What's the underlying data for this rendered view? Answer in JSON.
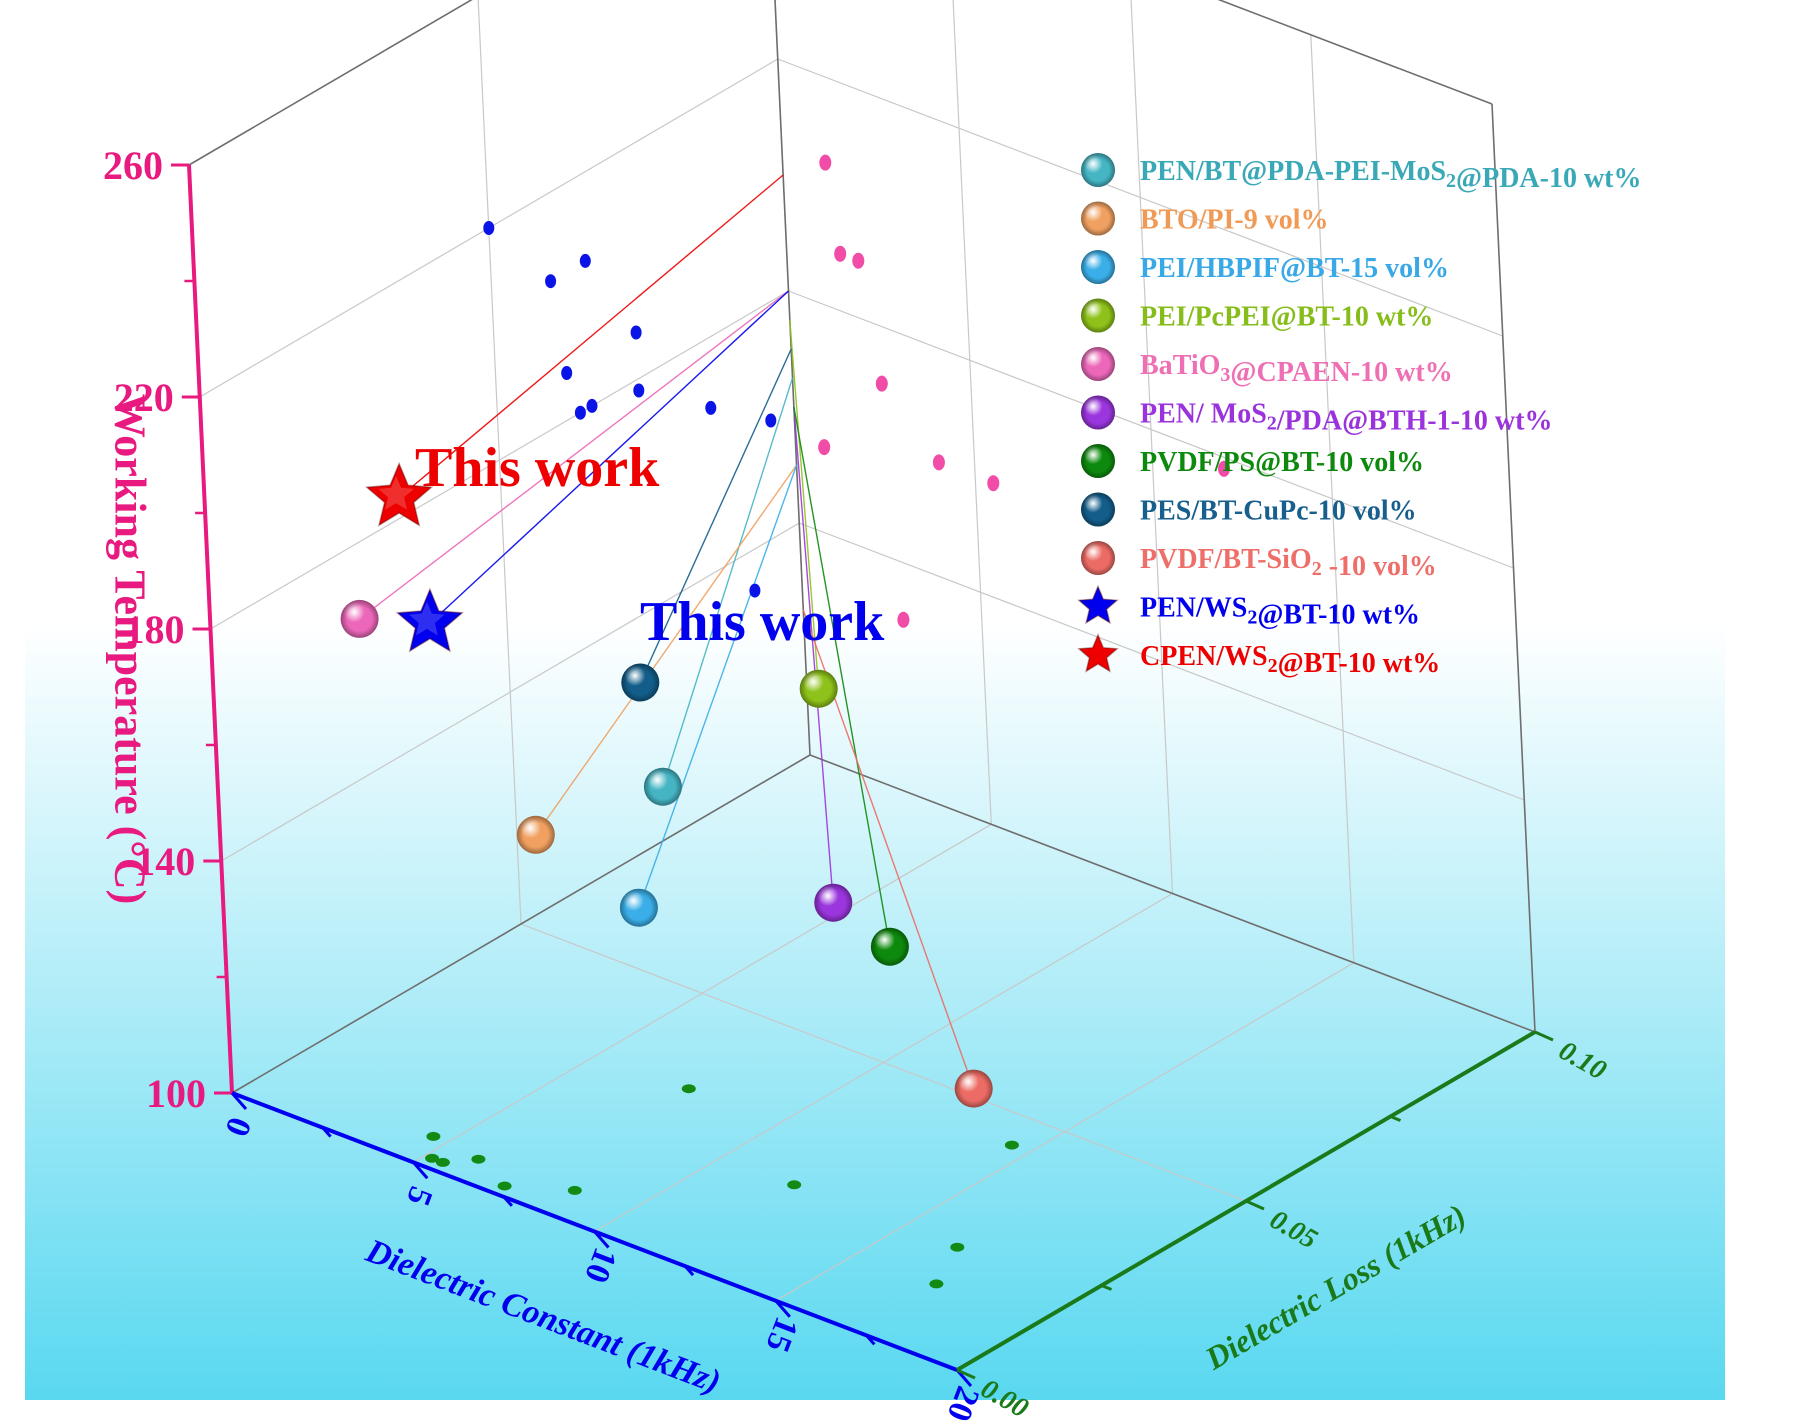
{
  "chart_data": {
    "type": "scatter3d",
    "title": "",
    "axes": {
      "x": {
        "label": "Dielectric Constant (1kHz)",
        "range": [
          0,
          20
        ],
        "ticks": [
          "0",
          "5",
          "10",
          "15",
          "20"
        ],
        "color": "#0000ee"
      },
      "y": {
        "label": "Dielectric Loss (1kHz)",
        "range": [
          0.0,
          0.1
        ],
        "ticks": [
          "0.00",
          "0.05",
          "0.10"
        ],
        "color": "#1a7a1a"
      },
      "z": {
        "label": "Working Temperature (°C)",
        "range": [
          100,
          260
        ],
        "ticks": [
          "100",
          "140",
          "180",
          "220",
          "260"
        ],
        "color": "#e8197f"
      }
    },
    "grid": true,
    "legend_position": "top-right",
    "series": [
      {
        "name": "PEN/BT@PDA-PEI-MoS2@PDA-10 wt%",
        "marker": "sphere",
        "color": "#45b5c4",
        "text_color": "#3aa9b7",
        "x": 9.5,
        "y": 0.018,
        "z": 165
      },
      {
        "name": "BTO/PI-9 vol%",
        "marker": "sphere",
        "color": "#f0a060",
        "text_color": "#f19a55",
        "x": 6.2,
        "y": 0.016,
        "z": 150
      },
      {
        "name": "PEI/HBPIF@BT-15 vol%",
        "marker": "sphere",
        "color": "#3aaee8",
        "text_color": "#38a8e6",
        "x": 10.0,
        "y": 0.01,
        "z": 150
      },
      {
        "name": "PEI/PcPEI@BT-10 wt%",
        "marker": "sphere",
        "color": "#8ec21a",
        "text_color": "#86bd1b",
        "x": 11.0,
        "y": 0.036,
        "z": 175
      },
      {
        "name": "BaTiO3@CPAEN-10 wt%",
        "marker": "sphere",
        "color": "#ec67b9",
        "text_color": "#ee6fb4",
        "x": 2.2,
        "y": 0.012,
        "z": 180
      },
      {
        "name": "PEN/ MoS2/PDA@BTH-1-10 wt%",
        "marker": "sphere",
        "color": "#9b35de",
        "text_color": "#9a33db",
        "x": 14.8,
        "y": 0.014,
        "z": 160
      },
      {
        "name": "PVDF/PS@BT-10 vol%",
        "marker": "sphere",
        "color": "#0d8a0d",
        "text_color": "#0d8a0d",
        "x": 17.0,
        "y": 0.01,
        "z": 160
      },
      {
        "name": "PES/BT-CuPc-10 vol%",
        "marker": "sphere",
        "color": "#135d8a",
        "text_color": "#175f8d",
        "x": 7.0,
        "y": 0.03,
        "z": 170
      },
      {
        "name": "PVDF/BT-SiO2 -10 vol%",
        "marker": "sphere",
        "color": "#ec6c65",
        "text_color": "#ee6f69",
        "x": 16.5,
        "y": 0.026,
        "z": 125
      },
      {
        "name": "PEN/WS2@BT-10 wt%",
        "marker": "star",
        "color": "#0000ee",
        "text_color": "#0000ee",
        "x": 3.5,
        "y": 0.016,
        "z": 180
      },
      {
        "name": "CPEN/WS2@BT-10 wt%",
        "marker": "star",
        "color": "#ee0000",
        "text_color": "#ee0000",
        "x": 2.8,
        "y": 0.016,
        "z": 200
      }
    ],
    "annotations": [
      {
        "text": "This work",
        "color": "#ee0000"
      },
      {
        "text": "This work",
        "color": "#0000ee"
      }
    ],
    "projections": {
      "xz_wall_pink": [
        {
          "x": 1.2,
          "z": 205
        },
        {
          "x": 1.5,
          "z": 190
        },
        {
          "x": 2.0,
          "z": 190
        },
        {
          "x": 2.5,
          "z": 170
        },
        {
          "x": 4.0,
          "z": 160
        },
        {
          "x": 5.5,
          "z": 160
        },
        {
          "x": 0.8,
          "z": 155
        },
        {
          "x": 2.8,
          "z": 130
        },
        {
          "x": 12.0,
          "z": 178
        }
      ],
      "yz_wall_blue": [
        {
          "y": 0.05,
          "z": 220
        },
        {
          "y": 0.06,
          "z": 205
        },
        {
          "y": 0.066,
          "z": 205
        },
        {
          "y": 0.062,
          "z": 188
        },
        {
          "y": 0.074,
          "z": 188
        },
        {
          "y": 0.064,
          "z": 180
        },
        {
          "y": 0.066,
          "z": 180
        },
        {
          "y": 0.074,
          "z": 178
        },
        {
          "y": 0.086,
          "z": 168
        },
        {
          "y": 0.096,
          "z": 160
        },
        {
          "y": 0.092,
          "z": 133
        }
      ],
      "xy_floor_green": [
        {
          "x": 4.6,
          "y": 0.006
        },
        {
          "x": 5.5,
          "y": 0.002
        },
        {
          "x": 5.2,
          "y": 0.002
        },
        {
          "x": 6.0,
          "y": 0.005
        },
        {
          "x": 8.5,
          "y": 0.006
        },
        {
          "x": 7.2,
          "y": 0.002
        },
        {
          "x": 7.5,
          "y": 0.032
        },
        {
          "x": 12.0,
          "y": 0.022
        },
        {
          "x": 14.5,
          "y": 0.044
        },
        {
          "x": 16.5,
          "y": 0.022
        },
        {
          "x": 17.2,
          "y": 0.014
        }
      ]
    }
  }
}
